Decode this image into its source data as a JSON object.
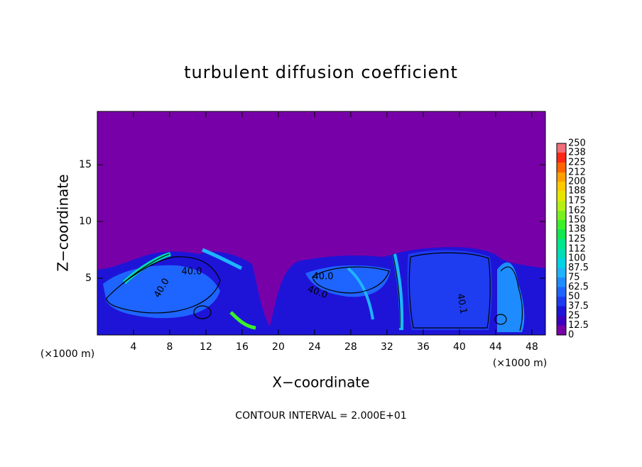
{
  "chart_data": {
    "type": "contour",
    "title": "turbulent diffusion coefficient",
    "xlabel": "X−coordinate",
    "ylabel": "Z−coordinate",
    "x_unit_left": "(×1000 m)",
    "x_unit_right": "(×1000 m)",
    "footer": "CONTOUR INTERVAL = 2.000E+01",
    "xlim": [
      0,
      49.5
    ],
    "xticks": [
      4,
      8,
      12,
      16,
      20,
      24,
      28,
      32,
      36,
      40,
      44,
      48
    ],
    "ylim": [
      0,
      19.7
    ],
    "yticks": [
      5,
      10,
      15
    ],
    "contour_labels": [
      "40.0",
      "40.0",
      "40.0",
      "40.0",
      "40.1"
    ],
    "colorbar": {
      "levels": [
        0,
        12.5,
        25,
        37.5,
        50,
        62.5,
        75,
        87.5,
        100,
        112,
        125,
        138,
        150,
        162,
        175,
        188,
        200,
        212,
        225,
        238,
        250
      ],
      "colors": [
        "#7800a8",
        "#3c00c0",
        "#1e14d8",
        "#1e3cf0",
        "#1e64ff",
        "#1e8cff",
        "#1eb4ff",
        "#00d2e6",
        "#00dcb4",
        "#00e68c",
        "#14e650",
        "#3cf028",
        "#78f01e",
        "#b4f014",
        "#e6e600",
        "#ffc800",
        "#ffa000",
        "#ff6400",
        "#ff2814",
        "#f06e78"
      ]
    }
  }
}
